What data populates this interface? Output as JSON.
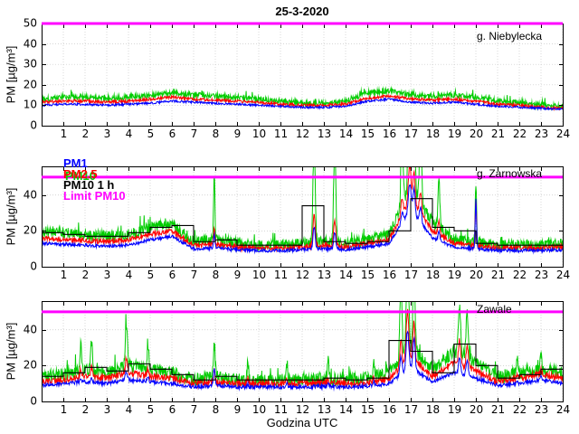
{
  "chart_data": {
    "type": "line",
    "title": "25-3-2020",
    "xlabel": "Godzina UTC",
    "ylabel": "PM [µg/m³]",
    "x_ticks": [
      1,
      2,
      3,
      4,
      5,
      6,
      7,
      8,
      9,
      10,
      11,
      12,
      13,
      14,
      15,
      16,
      17,
      18,
      19,
      20,
      21,
      22,
      23,
      24
    ],
    "limit": {
      "label": "Limit PM10",
      "value": 50,
      "color": "#ff00ff"
    },
    "series_meta": [
      {
        "name": "PM1",
        "color": "#0000ff"
      },
      {
        "name": "PM2.5",
        "color": "#ff0000"
      },
      {
        "name": "PM10",
        "color": "#00cc00"
      },
      {
        "name": "PM10 1 h",
        "color": "#000000"
      },
      {
        "name": "Limit PM10",
        "color": "#ff00ff"
      }
    ],
    "panels": [
      {
        "station": "g. Niebylecka",
        "ylim": [
          0,
          50
        ],
        "yticks": [
          0,
          10,
          20,
          30,
          40,
          50
        ],
        "pm10": [
          13,
          14,
          14,
          13.5,
          14,
          15,
          16,
          15,
          14.5,
          14,
          13,
          12,
          11,
          11,
          12,
          16,
          17,
          15,
          14.5,
          15,
          14,
          12,
          11,
          10,
          9.5
        ],
        "pm25": [
          11.5,
          12,
          12,
          11.5,
          12,
          13,
          14,
          13,
          12.5,
          12,
          11.5,
          10.5,
          10,
          10,
          10.5,
          13.5,
          14.5,
          13,
          12.5,
          13,
          12,
          10.5,
          10,
          9,
          8.5
        ],
        "pm1": [
          10,
          10.5,
          10.5,
          10,
          10.5,
          11,
          12,
          11.5,
          11,
          10.5,
          10,
          9.5,
          9,
          9,
          9.5,
          12,
          13,
          11.5,
          11,
          11.5,
          10.5,
          9.5,
          9,
          8.5,
          8
        ],
        "pm10_1h": null,
        "noise": {
          "pm10": 1.3,
          "pm25": 0.7,
          "pm1": 0.5
        },
        "spikes": []
      },
      {
        "station": "g. Zarnowska",
        "ylim": [
          0,
          56
        ],
        "yticks": [
          0,
          20,
          40
        ],
        "pm10": [
          20,
          19,
          18,
          17,
          18,
          22,
          24,
          14,
          15,
          13,
          12,
          12,
          13,
          14,
          13,
          15,
          18,
          45,
          25,
          15,
          14,
          12,
          12,
          12,
          13
        ],
        "pm25": [
          16,
          15,
          14.5,
          14,
          15,
          18,
          20,
          12,
          12.5,
          11,
          10.5,
          10.5,
          11,
          12,
          11,
          13,
          15,
          38,
          20,
          13,
          12,
          10.5,
          10.5,
          10.5,
          11
        ],
        "pm1": [
          13,
          12.5,
          12,
          11.5,
          12,
          15,
          17,
          10,
          10.5,
          9.5,
          9,
          9,
          9.5,
          10,
          9.5,
          11,
          13,
          32,
          16,
          11,
          10,
          9,
          9,
          9,
          9.5
        ],
        "pm10_1h": [
          19,
          18,
          17,
          17,
          19,
          22,
          23,
          14,
          15,
          12,
          12,
          12,
          34,
          14,
          13,
          14,
          20,
          38,
          22,
          20,
          13,
          12,
          12,
          12
        ],
        "noise": {
          "pm10": 3.0,
          "pm25": 1.3,
          "pm1": 0.9
        },
        "spikes": [
          {
            "t": 7.95,
            "w": 0.03,
            "g": 38,
            "r": 10,
            "b": 8
          },
          {
            "t": 12.55,
            "w": 0.05,
            "g": 55,
            "r": 18,
            "b": 12
          },
          {
            "t": 13.5,
            "w": 0.05,
            "g": 55,
            "r": 14,
            "b": 9
          },
          {
            "t": 16.6,
            "w": 0.05,
            "g": 40,
            "r": 10,
            "b": 6
          },
          {
            "t": 16.95,
            "w": 0.06,
            "g": 50,
            "r": 20,
            "b": 15
          },
          {
            "t": 17.15,
            "w": 0.05,
            "g": 45,
            "r": 18,
            "b": 14
          },
          {
            "t": 17.45,
            "w": 0.05,
            "g": 40,
            "r": 12,
            "b": 8
          },
          {
            "t": 18.3,
            "w": 0.04,
            "g": 26,
            "r": 8,
            "b": 5
          },
          {
            "t": 20.0,
            "w": 0.03,
            "g": 32,
            "r": 26,
            "b": 28
          }
        ]
      },
      {
        "station": "Zawale",
        "ylim": [
          0,
          56
        ],
        "yticks": [
          0,
          20,
          40
        ],
        "pm10": [
          14,
          15,
          18,
          16,
          20,
          18,
          16,
          12,
          14,
          12,
          12,
          12,
          12,
          13,
          12,
          13,
          16,
          30,
          18,
          28,
          22,
          14,
          16,
          18,
          16
        ],
        "pm25": [
          11,
          12,
          14,
          13,
          16,
          14,
          13,
          10,
          11,
          10,
          10,
          10,
          10,
          10.5,
          10,
          10.5,
          13,
          24,
          14,
          22,
          17,
          11,
          13,
          15,
          13
        ],
        "pm1": [
          9,
          10,
          11,
          10,
          12,
          11,
          10,
          8,
          9,
          8,
          8,
          8,
          8,
          8.5,
          8,
          8.5,
          10,
          19,
          11,
          16,
          13,
          9,
          10,
          12,
          10
        ],
        "pm10_1h": [
          14,
          16,
          19,
          17,
          21,
          18,
          15,
          12,
          14,
          12,
          12,
          12,
          12,
          13,
          12,
          13,
          34,
          28,
          16,
          32,
          20,
          13,
          15,
          18
        ],
        "noise": {
          "pm10": 3.5,
          "pm25": 1.6,
          "pm1": 1.0
        },
        "spikes": [
          {
            "t": 1.8,
            "w": 0.04,
            "g": 14,
            "r": 4,
            "b": 2
          },
          {
            "t": 2.3,
            "w": 0.04,
            "g": 16,
            "r": 6,
            "b": 3
          },
          {
            "t": 3.9,
            "w": 0.05,
            "g": 24,
            "r": 8,
            "b": 5
          },
          {
            "t": 4.9,
            "w": 0.04,
            "g": 12,
            "r": 4,
            "b": 2
          },
          {
            "t": 7.95,
            "w": 0.04,
            "g": 20,
            "r": 6,
            "b": 10
          },
          {
            "t": 9.5,
            "w": 0.03,
            "g": 10,
            "r": 3,
            "b": 2
          },
          {
            "t": 11.3,
            "w": 0.03,
            "g": 10,
            "r": 3,
            "b": 2
          },
          {
            "t": 13.2,
            "w": 0.03,
            "g": 11,
            "r": 3,
            "b": 2
          },
          {
            "t": 15.3,
            "w": 0.03,
            "g": 10,
            "r": 3,
            "b": 2
          },
          {
            "t": 16.55,
            "w": 0.05,
            "g": 42,
            "r": 14,
            "b": 10
          },
          {
            "t": 16.85,
            "w": 0.06,
            "g": 48,
            "r": 28,
            "b": 22
          },
          {
            "t": 17.15,
            "w": 0.05,
            "g": 46,
            "r": 22,
            "b": 18
          },
          {
            "t": 19.25,
            "w": 0.05,
            "g": 28,
            "r": 14,
            "b": 9
          },
          {
            "t": 19.6,
            "w": 0.05,
            "g": 26,
            "r": 12,
            "b": 8
          },
          {
            "t": 21.9,
            "w": 0.03,
            "g": 10,
            "r": 3,
            "b": 2
          },
          {
            "t": 23.0,
            "w": 0.03,
            "g": 9,
            "r": 3,
            "b": 2
          }
        ]
      }
    ]
  }
}
